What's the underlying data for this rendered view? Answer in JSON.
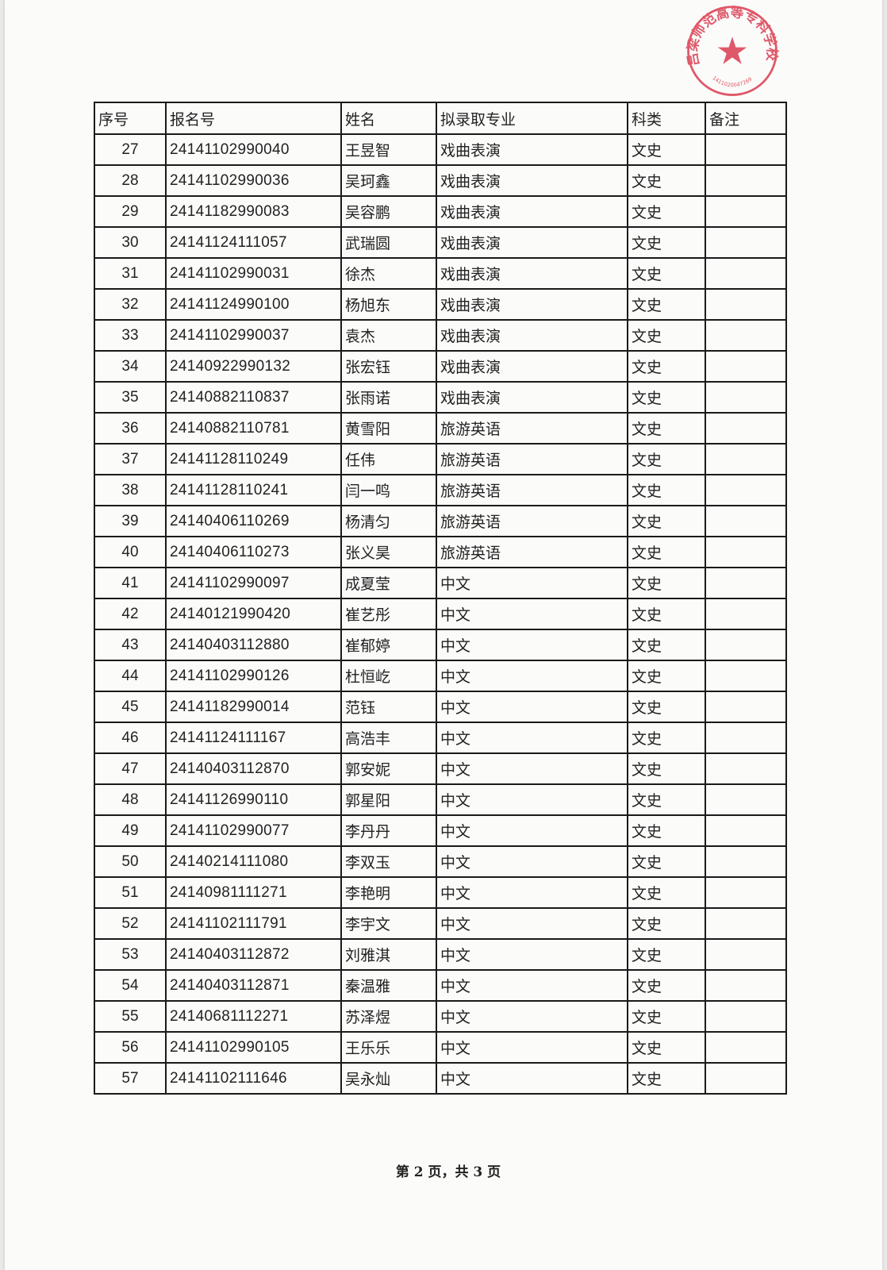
{
  "table": {
    "headers": [
      "序号",
      "报名号",
      "姓名",
      "拟录取专业",
      "科类",
      "备注"
    ],
    "rows": [
      [
        "27",
        "24141102990040",
        "王昱智",
        "戏曲表演",
        "文史",
        ""
      ],
      [
        "28",
        "24141102990036",
        "吴珂鑫",
        "戏曲表演",
        "文史",
        ""
      ],
      [
        "29",
        "24141182990083",
        "吴容鹏",
        "戏曲表演",
        "文史",
        ""
      ],
      [
        "30",
        "24141124111057",
        "武瑞圆",
        "戏曲表演",
        "文史",
        ""
      ],
      [
        "31",
        "24141102990031",
        "徐杰",
        "戏曲表演",
        "文史",
        ""
      ],
      [
        "32",
        "24141124990100",
        "杨旭东",
        "戏曲表演",
        "文史",
        ""
      ],
      [
        "33",
        "24141102990037",
        "袁杰",
        "戏曲表演",
        "文史",
        ""
      ],
      [
        "34",
        "24140922990132",
        "张宏钰",
        "戏曲表演",
        "文史",
        ""
      ],
      [
        "35",
        "24140882110837",
        "张雨诺",
        "戏曲表演",
        "文史",
        ""
      ],
      [
        "36",
        "24140882110781",
        "黄雪阳",
        "旅游英语",
        "文史",
        ""
      ],
      [
        "37",
        "24141128110249",
        "任伟",
        "旅游英语",
        "文史",
        ""
      ],
      [
        "38",
        "24141128110241",
        "闫一鸣",
        "旅游英语",
        "文史",
        ""
      ],
      [
        "39",
        "24140406110269",
        "杨清匀",
        "旅游英语",
        "文史",
        ""
      ],
      [
        "40",
        "24140406110273",
        "张义昊",
        "旅游英语",
        "文史",
        ""
      ],
      [
        "41",
        "24141102990097",
        "成夏莹",
        "中文",
        "文史",
        ""
      ],
      [
        "42",
        "24140121990420",
        "崔艺彤",
        "中文",
        "文史",
        ""
      ],
      [
        "43",
        "24140403112880",
        "崔郁婷",
        "中文",
        "文史",
        ""
      ],
      [
        "44",
        "24141102990126",
        "杜恒屹",
        "中文",
        "文史",
        ""
      ],
      [
        "45",
        "24141182990014",
        "范钰",
        "中文",
        "文史",
        ""
      ],
      [
        "46",
        "24141124111167",
        "高浩丰",
        "中文",
        "文史",
        ""
      ],
      [
        "47",
        "24140403112870",
        "郭安妮",
        "中文",
        "文史",
        ""
      ],
      [
        "48",
        "24141126990110",
        "郭星阳",
        "中文",
        "文史",
        ""
      ],
      [
        "49",
        "24141102990077",
        "李丹丹",
        "中文",
        "文史",
        ""
      ],
      [
        "50",
        "24140214111080",
        "李双玉",
        "中文",
        "文史",
        ""
      ],
      [
        "51",
        "24140981111271",
        "李艳明",
        "中文",
        "文史",
        ""
      ],
      [
        "52",
        "24141102111791",
        "李宇文",
        "中文",
        "文史",
        ""
      ],
      [
        "53",
        "24140403112872",
        "刘雅淇",
        "中文",
        "文史",
        ""
      ],
      [
        "54",
        "24140403112871",
        "秦温雅",
        "中文",
        "文史",
        ""
      ],
      [
        "55",
        "24140681112271",
        "苏泽煜",
        "中文",
        "文史",
        ""
      ],
      [
        "56",
        "24141102990105",
        "王乐乐",
        "中文",
        "文史",
        ""
      ],
      [
        "57",
        "24141102111646",
        "吴永灿",
        "中文",
        "文史",
        ""
      ]
    ]
  },
  "footer": "第 2 页，共 3 页",
  "stamp": {
    "text": "吕梁师范高等专科学校",
    "code": "1411020047269",
    "color": "#d9354a"
  }
}
